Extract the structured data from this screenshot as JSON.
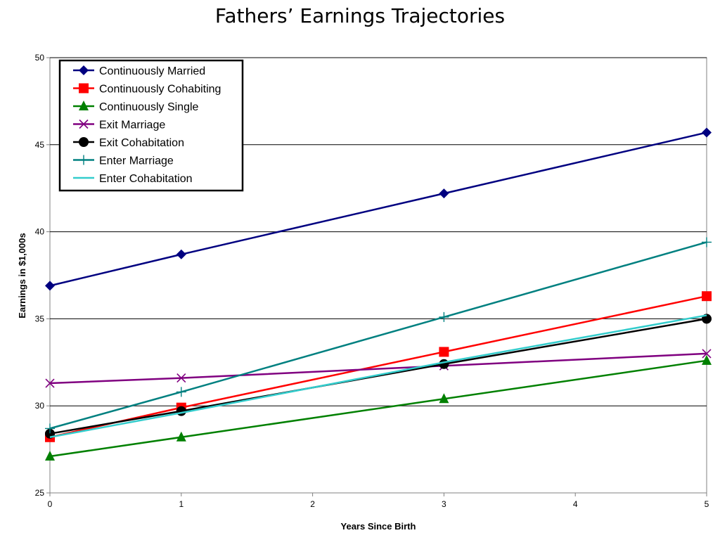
{
  "chart_data": {
    "type": "line",
    "title": "Fathers’ Earnings Trajectories",
    "xlabel": "Years Since Birth",
    "ylabel": "Earnings in $1,000s",
    "xlim": [
      0,
      5
    ],
    "ylim": [
      25,
      50
    ],
    "x_ticks": [
      "0",
      "1",
      "2",
      "3",
      "4",
      "5"
    ],
    "y_ticks": [
      "25",
      "30",
      "35",
      "40",
      "45",
      "50"
    ],
    "grid": "horizontal",
    "legend_position": "top-left",
    "series": [
      {
        "name": "Continuously Married",
        "color": "#000080",
        "marker": "diamond",
        "x": [
          0,
          1,
          3,
          5
        ],
        "values": [
          36.9,
          38.7,
          42.2,
          45.7
        ]
      },
      {
        "name": "Continuously Cohabiting",
        "color": "#ff0000",
        "marker": "square",
        "x": [
          0,
          1,
          3,
          5
        ],
        "values": [
          28.2,
          29.9,
          33.1,
          36.3
        ]
      },
      {
        "name": "Continuously Single",
        "color": "#008000",
        "marker": "triangle",
        "x": [
          0,
          1,
          3,
          5
        ],
        "values": [
          27.1,
          28.2,
          30.4,
          32.6
        ]
      },
      {
        "name": "Exit Marriage",
        "color": "#800080",
        "marker": "x",
        "x": [
          0,
          1,
          3,
          5
        ],
        "values": [
          31.3,
          31.6,
          32.3,
          33.0
        ]
      },
      {
        "name": "Exit Cohabitation",
        "color": "#000000",
        "marker": "circle",
        "x": [
          0,
          1,
          3,
          5
        ],
        "values": [
          28.4,
          29.7,
          32.4,
          35.0
        ]
      },
      {
        "name": "Enter Marriage",
        "color": "#008080",
        "marker": "plus",
        "x": [
          0,
          1,
          3,
          5
        ],
        "values": [
          28.7,
          30.8,
          35.1,
          39.4
        ]
      },
      {
        "name": "Enter Cohabitation",
        "color": "#33cccc",
        "marker": "none",
        "x": [
          0,
          1,
          3,
          5
        ],
        "values": [
          28.2,
          29.6,
          32.5,
          35.2
        ]
      }
    ]
  }
}
